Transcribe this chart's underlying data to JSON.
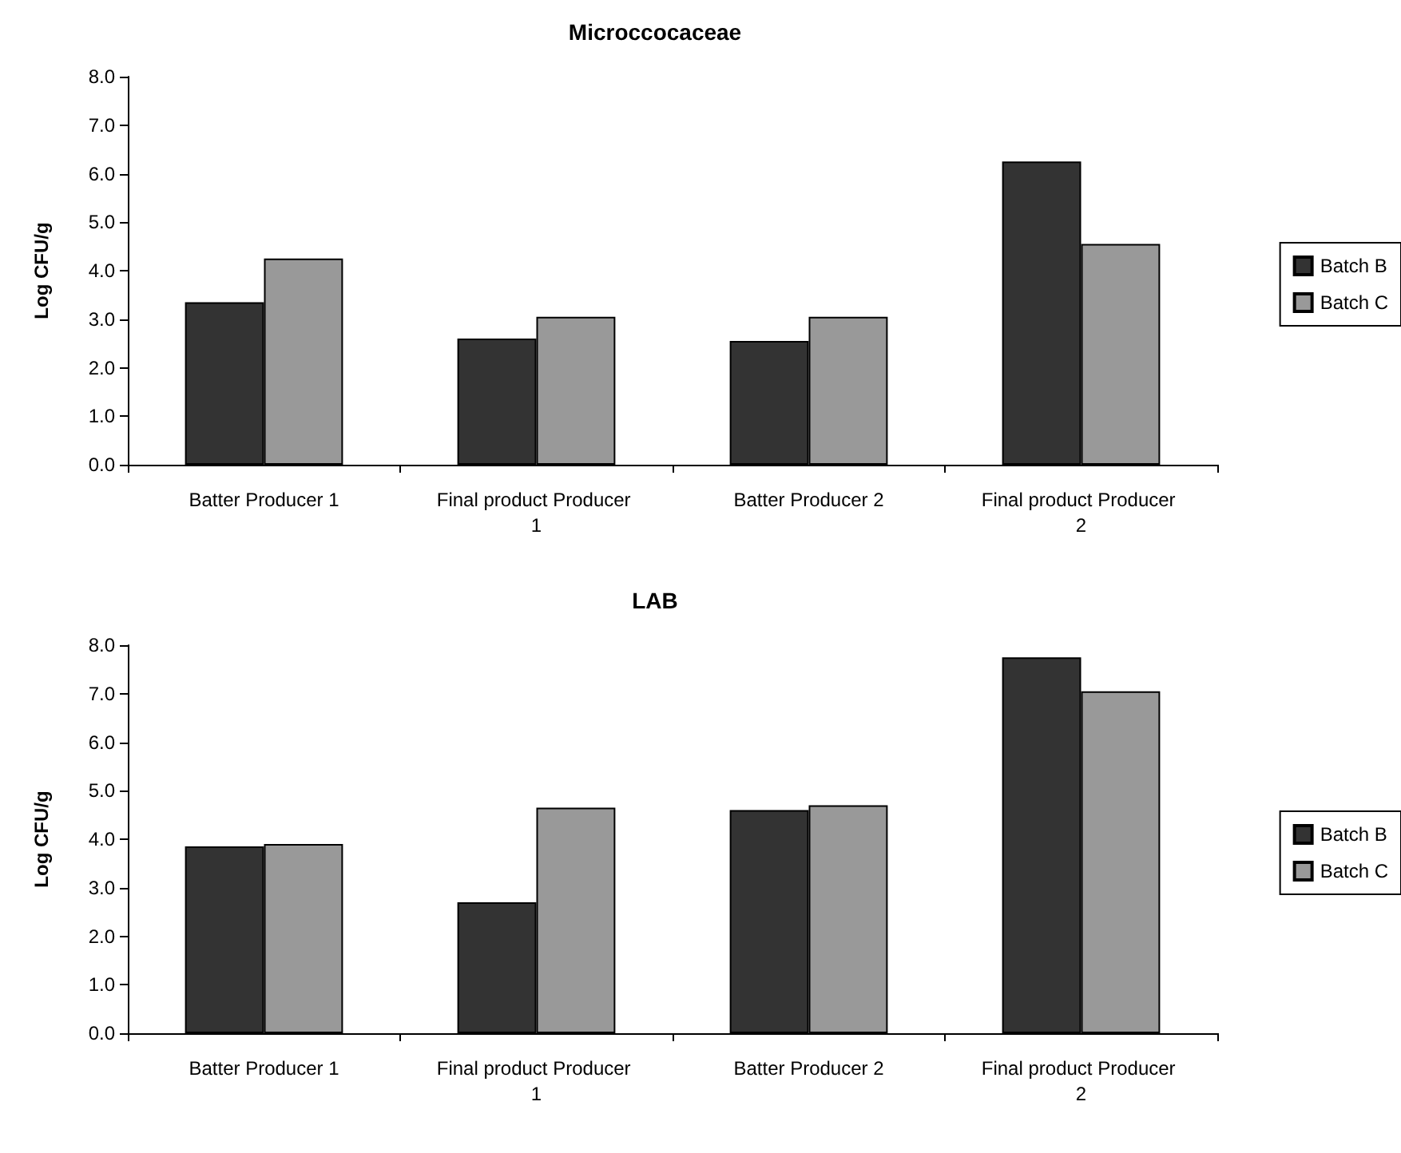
{
  "chart_data": [
    {
      "type": "bar",
      "title": "Microccocaceae",
      "ylabel": "Log CFU/g",
      "categories": [
        "Batter Producer 1",
        "Final product Producer 1",
        "Batter Producer 2",
        "Final product Producer 2"
      ],
      "series": [
        {
          "name": "Batch B",
          "color": "#333333",
          "values": [
            3.35,
            2.6,
            2.55,
            6.25
          ]
        },
        {
          "name": "Batch C",
          "color": "#999999",
          "values": [
            4.25,
            3.05,
            3.05,
            4.55
          ]
        }
      ],
      "ylim": [
        0,
        8
      ],
      "yticks": [
        {
          "value": 0,
          "label": "0.0"
        },
        {
          "value": 1,
          "label": "1.0"
        },
        {
          "value": 2,
          "label": "2.0"
        },
        {
          "value": 3,
          "label": "3.0"
        },
        {
          "value": 4,
          "label": "4.0"
        },
        {
          "value": 5,
          "label": "5.0"
        },
        {
          "value": 6,
          "label": "6.0"
        },
        {
          "value": 7,
          "label": "7.0"
        },
        {
          "value": 8,
          "label": "8.0"
        }
      ],
      "grid": false,
      "legend": "right"
    },
    {
      "type": "bar",
      "title": "LAB",
      "ylabel": "Log CFU/g",
      "categories": [
        "Batter Producer 1",
        "Final product Producer 1",
        "Batter Producer 2",
        "Final product Producer 2"
      ],
      "series": [
        {
          "name": "Batch B",
          "color": "#333333",
          "values": [
            3.85,
            2.7,
            4.6,
            7.75
          ]
        },
        {
          "name": "Batch C",
          "color": "#999999",
          "values": [
            3.9,
            4.65,
            4.7,
            7.05
          ]
        }
      ],
      "ylim": [
        0,
        8
      ],
      "yticks": [
        {
          "value": 0,
          "label": "0.0"
        },
        {
          "value": 1,
          "label": "1.0"
        },
        {
          "value": 2,
          "label": "2.0"
        },
        {
          "value": 3,
          "label": "3.0"
        },
        {
          "value": 4,
          "label": "4.0"
        },
        {
          "value": 5,
          "label": "5.0"
        },
        {
          "value": 6,
          "label": "6.0"
        },
        {
          "value": 7,
          "label": "7.0"
        },
        {
          "value": 8,
          "label": "8.0"
        }
      ],
      "grid": false,
      "legend": "right"
    }
  ]
}
